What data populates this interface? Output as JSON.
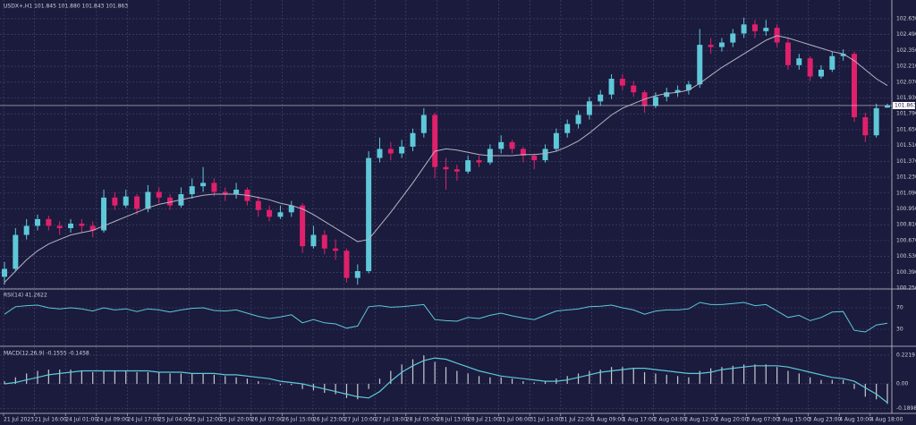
{
  "chart_data": [
    {
      "type": "candlestick",
      "title": "USDX+,H1 101.845 101.880 101.843 101.863",
      "candles": [
        [
          100.35,
          100.48,
          100.28,
          100.42
        ],
        [
          100.42,
          100.78,
          100.4,
          100.72
        ],
        [
          100.72,
          100.86,
          100.68,
          100.8
        ],
        [
          100.8,
          100.9,
          100.76,
          100.86
        ],
        [
          100.86,
          100.89,
          100.76,
          100.8
        ],
        [
          100.8,
          100.84,
          100.72,
          100.78
        ],
        [
          100.78,
          100.86,
          100.74,
          100.82
        ],
        [
          100.82,
          100.86,
          100.74,
          100.8
        ],
        [
          100.8,
          100.84,
          100.7,
          100.76
        ],
        [
          100.76,
          101.12,
          100.74,
          101.05
        ],
        [
          101.05,
          101.1,
          100.94,
          100.98
        ],
        [
          100.98,
          101.12,
          100.96,
          101.06
        ],
        [
          101.06,
          101.08,
          100.9,
          100.95
        ],
        [
          100.95,
          101.16,
          100.92,
          101.1
        ],
        [
          101.1,
          101.14,
          101.0,
          101.05
        ],
        [
          101.05,
          101.08,
          100.94,
          100.98
        ],
        [
          100.98,
          101.14,
          100.96,
          101.08
        ],
        [
          101.08,
          101.22,
          101.04,
          101.15
        ],
        [
          101.15,
          101.32,
          101.1,
          101.18
        ],
        [
          101.18,
          101.22,
          101.06,
          101.1
        ],
        [
          101.1,
          101.14,
          101.02,
          101.08
        ],
        [
          101.08,
          101.18,
          101.04,
          101.12
        ],
        [
          101.12,
          101.14,
          100.98,
          101.02
        ],
        [
          101.02,
          101.06,
          100.88,
          100.94
        ],
        [
          100.94,
          100.98,
          100.84,
          100.88
        ],
        [
          100.88,
          100.98,
          100.86,
          100.92
        ],
        [
          100.92,
          101.02,
          100.88,
          100.98
        ],
        [
          100.98,
          101.0,
          100.56,
          100.62
        ],
        [
          100.62,
          100.8,
          100.6,
          100.72
        ],
        [
          100.72,
          100.76,
          100.55,
          100.6
        ],
        [
          100.6,
          100.68,
          100.5,
          100.58
        ],
        [
          100.58,
          100.6,
          100.3,
          100.34
        ],
        [
          100.34,
          100.46,
          100.28,
          100.4
        ],
        [
          100.4,
          101.46,
          100.38,
          101.4
        ],
        [
          101.4,
          101.58,
          101.36,
          101.48
        ],
        [
          101.48,
          101.54,
          101.38,
          101.44
        ],
        [
          101.44,
          101.56,
          101.4,
          101.5
        ],
        [
          101.5,
          101.66,
          101.46,
          101.62
        ],
        [
          101.62,
          101.84,
          101.58,
          101.78
        ],
        [
          101.78,
          101.8,
          101.22,
          101.32
        ],
        [
          101.32,
          101.4,
          101.12,
          101.3
        ],
        [
          101.3,
          101.34,
          101.2,
          101.28
        ],
        [
          101.28,
          101.42,
          101.26,
          101.38
        ],
        [
          101.38,
          101.42,
          101.32,
          101.36
        ],
        [
          101.36,
          101.52,
          101.34,
          101.48
        ],
        [
          101.48,
          101.6,
          101.44,
          101.54
        ],
        [
          101.54,
          101.56,
          101.44,
          101.48
        ],
        [
          101.48,
          101.5,
          101.36,
          101.42
        ],
        [
          101.42,
          101.44,
          101.3,
          101.38
        ],
        [
          101.38,
          101.52,
          101.36,
          101.48
        ],
        [
          101.48,
          101.66,
          101.46,
          101.62
        ],
        [
          101.62,
          101.74,
          101.58,
          101.7
        ],
        [
          101.7,
          101.82,
          101.66,
          101.78
        ],
        [
          101.78,
          101.94,
          101.74,
          101.9
        ],
        [
          101.9,
          102.0,
          101.86,
          101.96
        ],
        [
          101.96,
          102.14,
          101.92,
          102.1
        ],
        [
          102.1,
          102.14,
          102.0,
          102.04
        ],
        [
          102.04,
          102.08,
          101.94,
          101.98
        ],
        [
          101.98,
          102.0,
          101.8,
          101.86
        ],
        [
          101.86,
          101.98,
          101.84,
          101.94
        ],
        [
          101.94,
          102.02,
          101.9,
          101.98
        ],
        [
          101.98,
          102.04,
          101.94,
          102.0
        ],
        [
          102.0,
          102.08,
          101.96,
          102.05
        ],
        [
          102.05,
          102.54,
          102.02,
          102.4
        ],
        [
          102.4,
          102.46,
          102.32,
          102.38
        ],
        [
          102.38,
          102.46,
          102.34,
          102.42
        ],
        [
          102.42,
          102.54,
          102.38,
          102.5
        ],
        [
          102.5,
          102.64,
          102.46,
          102.58
        ],
        [
          102.58,
          102.62,
          102.46,
          102.52
        ],
        [
          102.52,
          102.62,
          102.48,
          102.55
        ],
        [
          102.55,
          102.58,
          102.38,
          102.42
        ],
        [
          102.42,
          102.46,
          102.18,
          102.22
        ],
        [
          102.22,
          102.32,
          102.18,
          102.28
        ],
        [
          102.28,
          102.3,
          102.08,
          102.12
        ],
        [
          102.12,
          102.22,
          102.1,
          102.18
        ],
        [
          102.18,
          102.34,
          102.16,
          102.3
        ],
        [
          102.3,
          102.36,
          102.26,
          102.32
        ],
        [
          102.32,
          102.34,
          101.72,
          101.76
        ],
        [
          101.76,
          101.8,
          101.54,
          101.6
        ],
        [
          101.6,
          101.88,
          101.58,
          101.84
        ],
        [
          101.845,
          101.88,
          101.843,
          101.863
        ]
      ],
      "ma": [
        100.3,
        100.4,
        100.5,
        100.58,
        100.64,
        100.68,
        100.72,
        100.74,
        100.76,
        100.8,
        100.84,
        100.88,
        100.92,
        100.96,
        100.99,
        101.01,
        101.03,
        101.05,
        101.07,
        101.08,
        101.08,
        101.08,
        101.07,
        101.05,
        101.03,
        101.0,
        100.98,
        100.95,
        100.9,
        100.84,
        100.78,
        100.72,
        100.66,
        100.68,
        100.8,
        100.92,
        101.05,
        101.18,
        101.32,
        101.46,
        101.48,
        101.47,
        101.45,
        101.43,
        101.42,
        101.42,
        101.42,
        101.43,
        101.43,
        101.44,
        101.46,
        101.5,
        101.55,
        101.62,
        101.7,
        101.78,
        101.84,
        101.88,
        101.92,
        101.95,
        101.97,
        101.98,
        102.0,
        102.06,
        102.13,
        102.2,
        102.26,
        102.32,
        102.38,
        102.44,
        102.48,
        102.46,
        102.43,
        102.4,
        102.37,
        102.34,
        102.32,
        102.26,
        102.18,
        102.1,
        102.04
      ],
      "last_price": 101.863,
      "ylim": [
        100.25,
        102.78
      ],
      "yticks": [
        {
          "value": 100.25,
          "label": "100.250"
        },
        {
          "value": 100.39,
          "label": "100.390"
        },
        {
          "value": 100.53,
          "label": "100.530"
        },
        {
          "value": 100.67,
          "label": "100.670"
        },
        {
          "value": 100.81,
          "label": "100.810"
        },
        {
          "value": 100.95,
          "label": "100.950"
        },
        {
          "value": 101.09,
          "label": "101.090"
        },
        {
          "value": 101.23,
          "label": "101.230"
        },
        {
          "value": 101.37,
          "label": "101.370"
        },
        {
          "value": 101.51,
          "label": "101.510"
        },
        {
          "value": 101.65,
          "label": "101.650"
        },
        {
          "value": 101.79,
          "label": "101.790"
        },
        {
          "value": 101.93,
          "label": "101.930"
        },
        {
          "value": 102.07,
          "label": "102.070"
        },
        {
          "value": 102.21,
          "label": "102.210"
        },
        {
          "value": 102.35,
          "label": "102.350"
        },
        {
          "value": 102.49,
          "label": "102.490"
        },
        {
          "value": 102.63,
          "label": "102.630"
        }
      ],
      "xtick_labels": [
        "21 Jul 2023",
        "21 Jul 16:00",
        "24 Jul 01:00",
        "24 Jul 09:00",
        "24 Jul 17:00",
        "25 Jul 04:00",
        "25 Jul 12:00",
        "25 Jul 20:00",
        "26 Jul 07:00",
        "26 Jul 15:00",
        "26 Jul 23:00",
        "27 Jul 10:00",
        "27 Jul 18:00",
        "28 Jul 05:00",
        "28 Jul 13:00",
        "28 Jul 21:00",
        "31 Jul 06:00",
        "31 Jul 14:00",
        "31 Jul 22:00",
        "1 Aug 09:00",
        "1 Aug 17:00",
        "2 Aug 04:00",
        "2 Aug 12:00",
        "2 Aug 20:00",
        "3 Aug 07:00",
        "3 Aug 15:00",
        "3 Aug 23:00",
        "4 Aug 10:00",
        "4 Aug 18:00"
      ],
      "colors": {
        "up": "#5ec8d8",
        "down": "#e0206b",
        "ma": "#b4b4c4"
      },
      "grid": true
    },
    {
      "type": "line",
      "title": "RSI(14) 41.2622",
      "values": [
        58,
        72,
        74,
        75,
        70,
        68,
        70,
        68,
        64,
        70,
        66,
        68,
        63,
        68,
        66,
        62,
        66,
        69,
        70,
        65,
        64,
        66,
        60,
        54,
        50,
        53,
        57,
        42,
        48,
        42,
        40,
        32,
        36,
        72,
        74,
        71,
        72,
        74,
        76,
        48,
        46,
        45,
        52,
        50,
        56,
        60,
        55,
        51,
        48,
        56,
        64,
        66,
        68,
        72,
        73,
        75,
        70,
        66,
        58,
        64,
        66,
        66,
        68,
        80,
        76,
        76,
        78,
        80,
        74,
        76,
        64,
        52,
        56,
        46,
        52,
        62,
        63,
        28,
        25,
        38,
        41.2622
      ],
      "color": "#5ec8d8",
      "ylim": [
        0,
        100
      ],
      "yticks": [
        30,
        70
      ]
    },
    {
      "type": "macd",
      "title": "MACD(12,26,9) -0.1555 -0.1458",
      "histogram": [
        0.02,
        0.05,
        0.08,
        0.1,
        0.11,
        0.11,
        0.11,
        0.1,
        0.09,
        0.1,
        0.1,
        0.1,
        0.09,
        0.09,
        0.09,
        0.08,
        0.08,
        0.08,
        0.08,
        0.07,
        0.06,
        0.05,
        0.04,
        0.02,
        0.0,
        -0.01,
        -0.01,
        -0.04,
        -0.05,
        -0.07,
        -0.08,
        -0.11,
        -0.12,
        -0.04,
        0.04,
        0.1,
        0.15,
        0.19,
        0.22,
        0.17,
        0.13,
        0.1,
        0.08,
        0.06,
        0.05,
        0.05,
        0.04,
        0.02,
        0.01,
        0.02,
        0.04,
        0.06,
        0.08,
        0.1,
        0.11,
        0.13,
        0.13,
        0.12,
        0.09,
        0.08,
        0.07,
        0.06,
        0.05,
        0.1,
        0.12,
        0.13,
        0.14,
        0.15,
        0.15,
        0.15,
        0.13,
        0.1,
        0.08,
        0.05,
        0.03,
        0.03,
        0.03,
        -0.04,
        -0.1,
        -0.12,
        -0.1555
      ],
      "signal": [
        0.0,
        0.01,
        0.03,
        0.05,
        0.07,
        0.08,
        0.09,
        0.1,
        0.1,
        0.1,
        0.1,
        0.1,
        0.1,
        0.1,
        0.09,
        0.09,
        0.09,
        0.08,
        0.08,
        0.08,
        0.07,
        0.07,
        0.06,
        0.05,
        0.04,
        0.02,
        0.01,
        0.0,
        -0.02,
        -0.04,
        -0.06,
        -0.08,
        -0.1,
        -0.11,
        -0.06,
        0.02,
        0.09,
        0.14,
        0.18,
        0.2,
        0.19,
        0.16,
        0.13,
        0.1,
        0.08,
        0.06,
        0.05,
        0.04,
        0.03,
        0.02,
        0.02,
        0.03,
        0.05,
        0.07,
        0.09,
        0.1,
        0.11,
        0.12,
        0.12,
        0.11,
        0.1,
        0.09,
        0.08,
        0.08,
        0.09,
        0.11,
        0.12,
        0.13,
        0.14,
        0.14,
        0.14,
        0.13,
        0.11,
        0.09,
        0.07,
        0.05,
        0.04,
        0.02,
        -0.03,
        -0.08,
        -0.1458
      ],
      "histogram_color": "#c8c8d0",
      "signal_color": "#5ec8d8",
      "ylim": [
        -0.215,
        0.27
      ],
      "yticks": [
        0.2219,
        {
          "value": 0,
          "label": "0.00"
        },
        -0.1898
      ]
    }
  ]
}
